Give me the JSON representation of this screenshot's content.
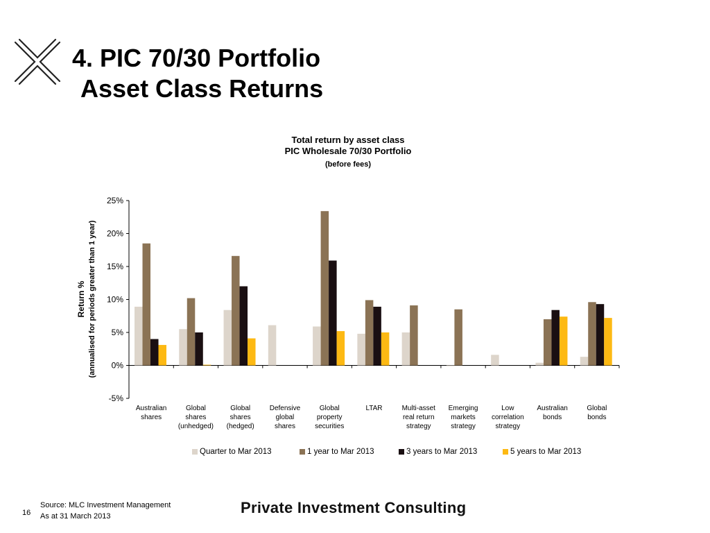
{
  "slide": {
    "title_line1": "4. PIC 70/30 Portfolio",
    "title_line2": "Asset Class Returns",
    "source": "Source: MLC Investment Management",
    "as_at": "As at 31 March 2013",
    "page_number": "16",
    "brand": "Private Investment Consulting",
    "logo_icon": "x-mark-logo-icon"
  },
  "chart_data": {
    "type": "bar",
    "title": "Total return by asset class",
    "subtitle": "PIC Wholesale 70/30 Portfolio",
    "subtitle2": "(before fees)",
    "ylabel": "Return %",
    "ylabel2": "(annualised for periods greater than 1 year)",
    "ylim": [
      -5,
      25
    ],
    "yticks": [
      -5,
      0,
      5,
      10,
      15,
      20,
      25
    ],
    "ytick_labels": [
      "-5%",
      "0%",
      "5%",
      "10%",
      "15%",
      "20%",
      "25%"
    ],
    "categories": [
      [
        "Australian",
        "shares"
      ],
      [
        "Global",
        "shares",
        "(unhedged)"
      ],
      [
        "Global",
        "shares",
        "(hedged)"
      ],
      [
        "Defensive",
        "global",
        "shares"
      ],
      [
        "Global",
        "property",
        "securities"
      ],
      [
        "LTAR"
      ],
      [
        "Multi-asset",
        "real return",
        "strategy"
      ],
      [
        "Emerging",
        "markets",
        "strategy"
      ],
      [
        "Low",
        "correlation",
        "strategy"
      ],
      [
        "Australian",
        "bonds"
      ],
      [
        "Global",
        "bonds"
      ]
    ],
    "series": [
      {
        "name": "Quarter to  Mar 2013",
        "color": "#DDD5CB",
        "values": [
          8.9,
          5.5,
          8.4,
          6.1,
          5.9,
          4.8,
          5.0,
          -0.1,
          1.6,
          0.4,
          1.3
        ]
      },
      {
        "name": "1 year to Mar 2013",
        "color": "#8B7355",
        "values": [
          18.5,
          10.2,
          16.6,
          null,
          23.4,
          9.9,
          9.1,
          8.5,
          null,
          7.0,
          9.6
        ]
      },
      {
        "name": "3 years to Mar 2013",
        "color": "#1A0F12",
        "values": [
          4.0,
          5.0,
          12.0,
          null,
          15.9,
          8.9,
          null,
          null,
          null,
          8.4,
          9.3
        ]
      },
      {
        "name": "5 years to Mar 2013",
        "color": "#FDB913",
        "values": [
          3.1,
          0.1,
          4.1,
          null,
          5.2,
          5.0,
          null,
          null,
          null,
          7.4,
          7.2
        ]
      }
    ],
    "grid": false,
    "legend_position": "bottom"
  }
}
